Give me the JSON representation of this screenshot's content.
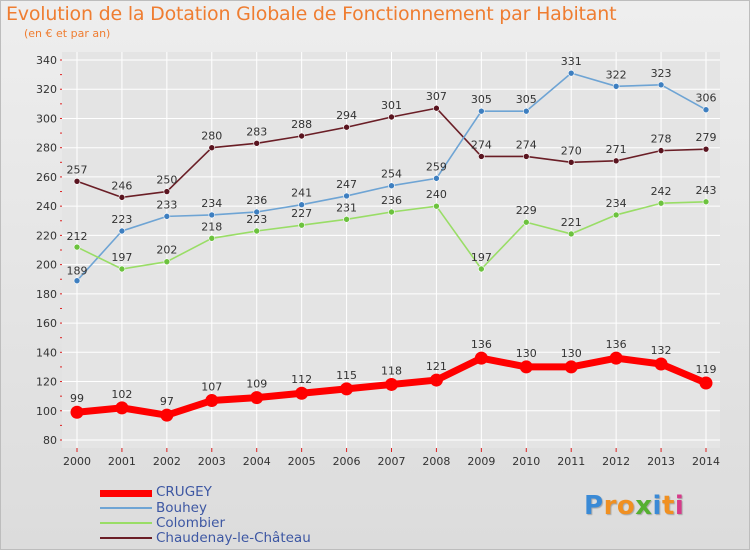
{
  "title": "Evolution de la Dotation Globale de Fonctionnement par Habitant",
  "subtitle": "(en € et par an)",
  "logo": {
    "text": "Proxiti",
    "letters": [
      {
        "ch": "P",
        "color": "#3a8ad6"
      },
      {
        "ch": "r",
        "color": "#f09022"
      },
      {
        "ch": "o",
        "color": "#f09022"
      },
      {
        "ch": "x",
        "color": "#55b030"
      },
      {
        "ch": "i",
        "color": "#3a8ad6"
      },
      {
        "ch": "t",
        "color": "#f09022"
      },
      {
        "ch": "i",
        "color": "#d63a8a"
      }
    ]
  },
  "colors": {
    "title": "#ef7d31",
    "axis_text": "#333333",
    "grid": "#ffffff",
    "legend_text": "#3d57a3"
  },
  "chart_data": {
    "type": "line",
    "title": "Evolution de la Dotation Globale de Fonctionnement par Habitant",
    "subtitle": "(en € et par an)",
    "xlabel": "",
    "ylabel": "",
    "ylim": [
      80,
      340
    ],
    "yticks": [
      80,
      100,
      120,
      140,
      160,
      180,
      200,
      220,
      240,
      260,
      280,
      300,
      320,
      340
    ],
    "grid": true,
    "legend_position": "bottom-left",
    "x": [
      "2000",
      "2001",
      "2002",
      "2003",
      "2004",
      "2005",
      "2006",
      "2007",
      "2008",
      "2009",
      "2010",
      "2011",
      "2012",
      "2013",
      "2014"
    ],
    "series": [
      {
        "key": "chaudenay",
        "name": "Chaudenay-le-Château",
        "color": "#6a1e26",
        "marker": "#5a1520",
        "width": 1.6,
        "values": [
          257,
          246,
          250,
          280,
          283,
          288,
          294,
          301,
          307,
          274,
          274,
          270,
          271,
          278,
          279
        ]
      },
      {
        "key": "bouhey",
        "name": "Bouhey",
        "color": "#6ea4d4",
        "marker": "#3e7fc0",
        "width": 1.6,
        "values": [
          189,
          223,
          233,
          234,
          236,
          241,
          247,
          254,
          259,
          305,
          305,
          331,
          322,
          323,
          306
        ]
      },
      {
        "key": "colombier",
        "name": "Colombier",
        "color": "#99dd66",
        "marker": "#6cc23e",
        "width": 1.6,
        "values": [
          212,
          197,
          202,
          218,
          223,
          227,
          231,
          236,
          240,
          197,
          229,
          221,
          234,
          242,
          243
        ]
      },
      {
        "key": "crugey",
        "name": "CRUGEY",
        "color": "#ff0000",
        "marker": "#ff0000",
        "width": 7,
        "values": [
          99,
          102,
          97,
          107,
          109,
          112,
          115,
          118,
          121,
          136,
          130,
          130,
          136,
          132,
          119
        ]
      }
    ],
    "legend": [
      "CRUGEY",
      "Bouhey",
      "Colombier",
      "Chaudenay-le-Château"
    ]
  }
}
